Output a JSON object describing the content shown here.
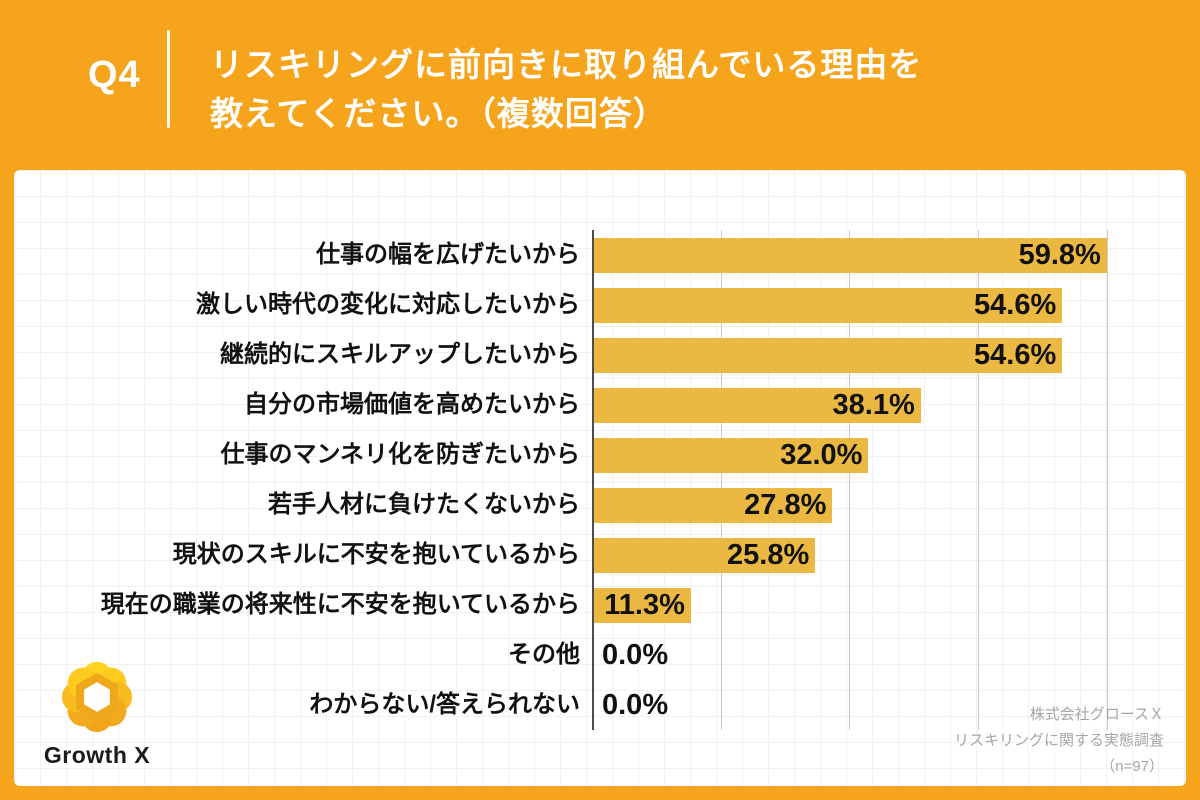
{
  "header": {
    "question_number": "Q4",
    "title_line1": "リスキリングに前向きに取り組んでいる理由を",
    "title_line2": "教えてください。（複数回答）"
  },
  "chart_data": {
    "type": "bar",
    "orientation": "horizontal",
    "title": "リスキリングに前向きに取り組んでいる理由（複数回答）",
    "unit": "%",
    "categories": [
      "仕事の幅を広げたいから",
      "激しい時代の変化に対応したいから",
      "継続的にスキルアップしたいから",
      "自分の市場価値を高めたいから",
      "仕事のマンネリ化を防ぎたいから",
      "若手人材に負けたくないから",
      "現状のスキルに不安を抱いているから",
      "現在の職業の将来性に不安を抱いているから",
      "その他",
      "わからない/答えられない"
    ],
    "values": [
      59.8,
      54.6,
      54.6,
      38.1,
      32.0,
      27.8,
      25.8,
      11.3,
      0.0,
      0.0
    ],
    "value_labels": [
      "59.8%",
      "54.6%",
      "54.6%",
      "38.1%",
      "32.0%",
      "27.8%",
      "25.8%",
      "11.3%",
      "0.0%",
      "0.0%"
    ],
    "xlim": [
      0,
      66
    ],
    "gridline_ticks": [
      15,
      30,
      45,
      60
    ],
    "grid": "vertical-light-gray",
    "legend": "none",
    "value_label_position": "inside-end",
    "bar_color": "#EBB842"
  },
  "branding": {
    "logo_icon": "growthx-flower-icon",
    "logo_text": "Growth X"
  },
  "footer": {
    "lines": [
      "株式会社グロースＸ",
      "リスキリングに関する実態調査",
      "（n=97）"
    ]
  },
  "colors": {
    "background_orange": "#F5A41C",
    "bar_gold": "#EBB842",
    "card_white": "#FFFFFF",
    "footer_gray": "#A6A6A6",
    "gridline_gray": "#C9C9C9",
    "axis_gray": "#4D4D4D",
    "text_black": "#111111"
  }
}
